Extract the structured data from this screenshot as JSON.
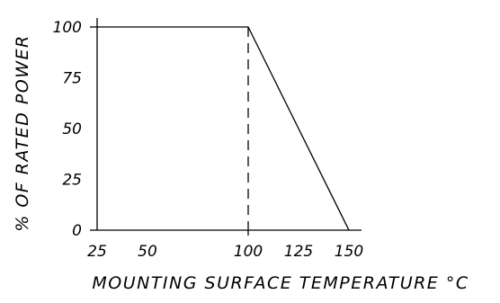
{
  "chart_data": {
    "type": "line",
    "title": "",
    "xlabel": "MOUNTING SURFACE TEMPERATURE °C",
    "ylabel": "% OF RATED POWER",
    "xlim": [
      25,
      150
    ],
    "ylim": [
      0,
      100
    ],
    "x_ticks": [
      25,
      50,
      100,
      125,
      150
    ],
    "y_ticks": [
      0,
      25,
      50,
      75,
      100
    ],
    "x_tick_labels": [
      "25",
      "50",
      "100",
      "125",
      "150"
    ],
    "y_tick_labels": [
      "0",
      "25",
      "50",
      "75",
      "100"
    ],
    "grid": false,
    "series": [
      {
        "x": [
          25,
          100,
          150
        ],
        "y": [
          100,
          100,
          0
        ]
      }
    ],
    "annotations": [
      {
        "type": "dashed-vertical-line",
        "x": 100
      }
    ]
  }
}
